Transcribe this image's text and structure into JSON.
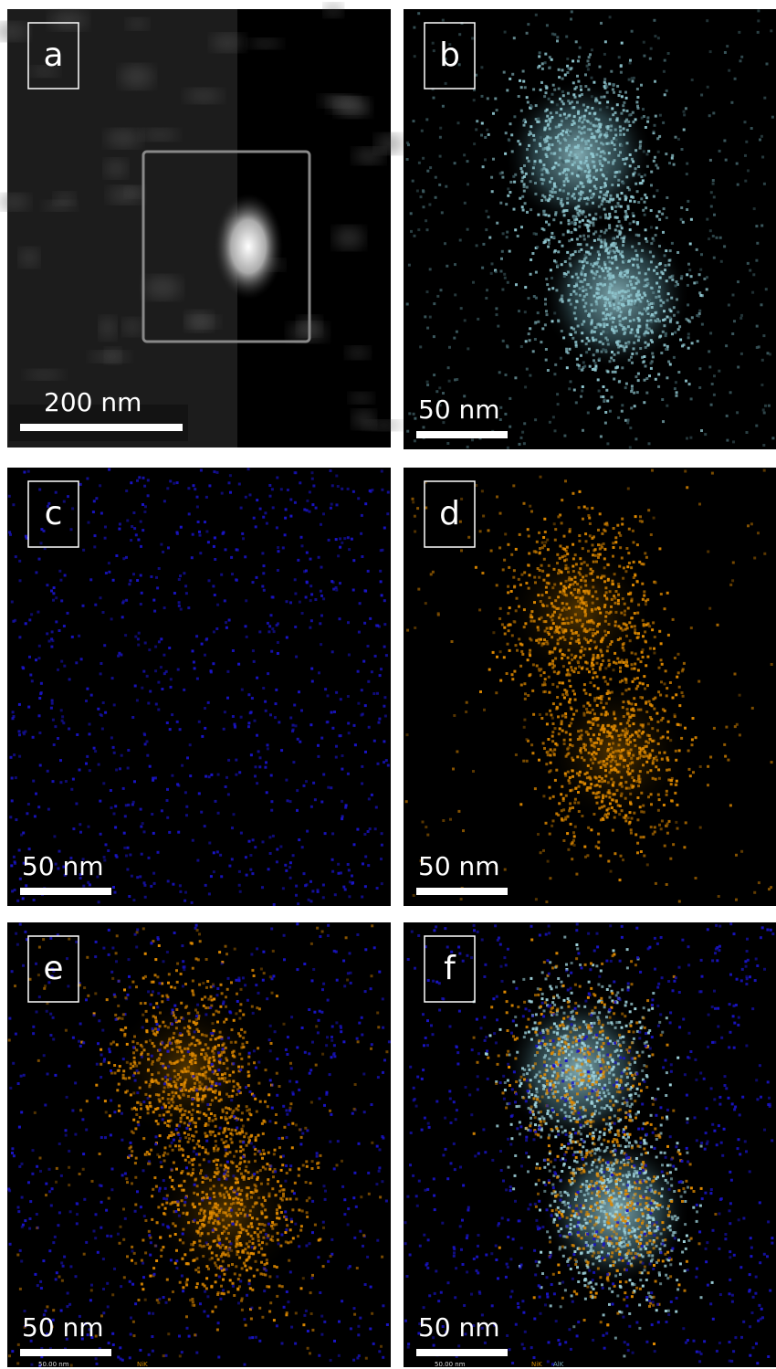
{
  "panels": [
    {
      "label": "a",
      "scale": "200 nm"
    },
    {
      "label": "b",
      "scale": "50 nm"
    },
    {
      "label": "c",
      "scale": "50 nm"
    },
    {
      "label": "d",
      "scale": "50 nm"
    },
    {
      "label": "e",
      "scale": "50 nm",
      "caption": "50.00 nm",
      "elements": [
        "NiK"
      ]
    },
    {
      "label": "f",
      "scale": "50 nm",
      "caption": "50.00 nm",
      "elements": [
        "NiK",
        "AlK"
      ]
    }
  ]
}
